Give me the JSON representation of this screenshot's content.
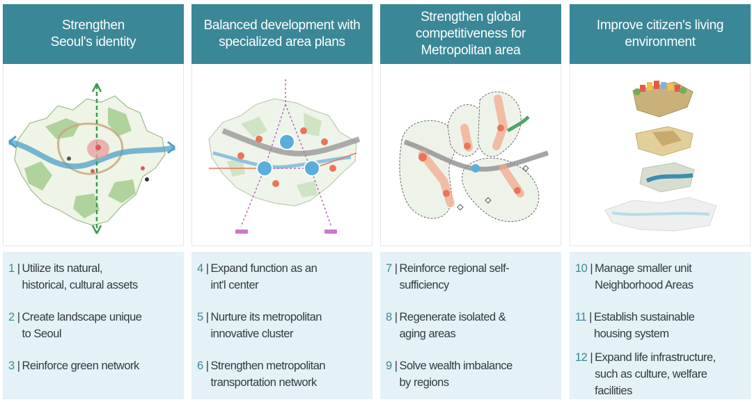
{
  "columns": [
    {
      "title": "Strengthen\nSeoul's identity",
      "image_label": "seoul-identity-map",
      "items": [
        {
          "num": "1",
          "text": "Utilize its natural,\nhistorical, cultural assets"
        },
        {
          "num": "2",
          "text": "Create landscape unique\nto Seoul"
        },
        {
          "num": "3",
          "text": "Reinforce green network"
        }
      ]
    },
    {
      "title": "Balanced development with\nspecialized area plans",
      "image_label": "balanced-development-map",
      "items": [
        {
          "num": "4",
          "text": "Expand function as an\nint'l center"
        },
        {
          "num": "5",
          "text": "Nurture its metropolitan\ninnovative cluster"
        },
        {
          "num": "6",
          "text": "Strengthen metropolitan\ntransportation network"
        }
      ]
    },
    {
      "title": "Strengthen global\ncompetitiveness for\nMetropolitan area",
      "image_label": "metropolitan-competitiveness-map",
      "items": [
        {
          "num": "7",
          "text": "Reinforce regional self-\nsufficiency"
        },
        {
          "num": "8",
          "text": "Regenerate isolated &\naging areas"
        },
        {
          "num": "9",
          "text": "Solve wealth imbalance\nby regions"
        }
      ]
    },
    {
      "title": "Improve citizen's living\nenvironment",
      "image_label": "living-environment-layers",
      "items": [
        {
          "num": "10",
          "text": "Manage smaller unit\nNeighborhood Areas"
        },
        {
          "num": "11",
          "text": "Establish sustainable\nhousing system"
        },
        {
          "num": "12",
          "text": "Expand life infrastructure,\nsuch as culture, welfare\nfacilities"
        }
      ]
    }
  ],
  "colors": {
    "header": "#3a8797",
    "list_bg": "#e4f1f6",
    "river": "#4f9fc7",
    "green": "#9bc98a",
    "accent": "#e8745a"
  }
}
